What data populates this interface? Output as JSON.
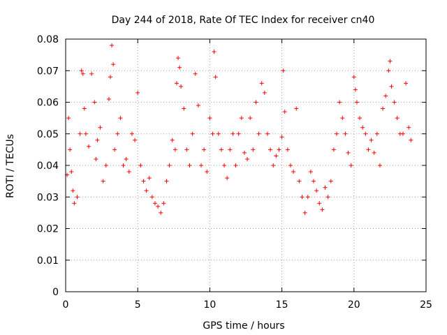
{
  "chart_data": {
    "type": "scatter",
    "title": "Day 244 of 2018, Rate Of TEC Index for receiver cn40",
    "xlabel": "GPS time / hours",
    "ylabel": "ROTI / TECUs",
    "xlim": [
      0,
      25
    ],
    "ylim": [
      0,
      0.08
    ],
    "x_ticks": [
      "0",
      "5",
      "10",
      "15",
      "20",
      "25"
    ],
    "y_ticks": [
      "0",
      "0.01",
      "0.02",
      "0.03",
      "0.04",
      "0.05",
      "0.06",
      "0.07",
      "0.08"
    ],
    "grid": true,
    "marker": "+",
    "marker_color": "#ff0000",
    "series": [
      {
        "x": [
          0.1,
          0.2,
          0.3,
          0.4,
          0.5,
          0.6,
          0.8,
          1.0,
          1.1,
          1.2,
          1.3,
          1.4,
          1.6,
          1.8,
          2.0,
          2.1,
          2.2,
          2.4,
          2.6,
          2.8,
          3.0,
          3.1,
          3.2,
          3.3,
          3.4,
          3.6,
          3.8,
          4.0,
          4.2,
          4.4,
          4.6,
          4.8,
          5.0,
          5.2,
          5.4,
          5.6,
          5.8,
          6.0,
          6.2,
          6.4,
          6.6,
          6.8,
          7.0,
          7.2,
          7.4,
          7.6,
          7.7,
          7.8,
          7.9,
          8.0,
          8.2,
          8.4,
          8.6,
          8.8,
          9.0,
          9.2,
          9.4,
          9.6,
          9.8,
          10.0,
          10.2,
          10.3,
          10.4,
          10.6,
          10.8,
          11.0,
          11.2,
          11.4,
          11.6,
          11.8,
          12.0,
          12.2,
          12.4,
          12.6,
          12.8,
          13.0,
          13.2,
          13.4,
          13.6,
          13.8,
          14.0,
          14.2,
          14.4,
          14.6,
          14.8,
          15.0,
          15.1,
          15.2,
          15.4,
          15.6,
          15.8,
          16.0,
          16.2,
          16.4,
          16.6,
          16.8,
          17.0,
          17.2,
          17.4,
          17.6,
          17.8,
          18.0,
          18.2,
          18.4,
          18.6,
          18.8,
          19.0,
          19.2,
          19.4,
          19.6,
          19.8,
          20.0,
          20.1,
          20.2,
          20.4,
          20.6,
          20.8,
          21.0,
          21.2,
          21.4,
          21.6,
          21.8,
          22.0,
          22.2,
          22.4,
          22.5,
          22.6,
          22.8,
          23.0,
          23.2,
          23.4,
          23.6,
          23.8,
          23.95
        ],
        "y": [
          0.037,
          0.055,
          0.045,
          0.038,
          0.032,
          0.028,
          0.03,
          0.05,
          0.07,
          0.069,
          0.058,
          0.05,
          0.046,
          0.069,
          0.06,
          0.042,
          0.048,
          0.052,
          0.035,
          0.04,
          0.061,
          0.068,
          0.078,
          0.072,
          0.045,
          0.05,
          0.055,
          0.04,
          0.042,
          0.038,
          0.05,
          0.048,
          0.063,
          0.04,
          0.035,
          0.032,
          0.036,
          0.03,
          0.028,
          0.027,
          0.025,
          0.028,
          0.035,
          0.04,
          0.048,
          0.045,
          0.066,
          0.074,
          0.071,
          0.065,
          0.058,
          0.045,
          0.04,
          0.05,
          0.069,
          0.059,
          0.04,
          0.045,
          0.038,
          0.055,
          0.05,
          0.076,
          0.068,
          0.05,
          0.045,
          0.04,
          0.036,
          0.045,
          0.05,
          0.04,
          0.05,
          0.055,
          0.044,
          0.042,
          0.055,
          0.045,
          0.06,
          0.05,
          0.066,
          0.063,
          0.05,
          0.045,
          0.04,
          0.043,
          0.045,
          0.049,
          0.07,
          0.057,
          0.045,
          0.04,
          0.038,
          0.058,
          0.035,
          0.03,
          0.025,
          0.03,
          0.038,
          0.035,
          0.032,
          0.028,
          0.026,
          0.033,
          0.03,
          0.035,
          0.045,
          0.05,
          0.06,
          0.055,
          0.05,
          0.044,
          0.04,
          0.068,
          0.064,
          0.06,
          0.055,
          0.052,
          0.05,
          0.045,
          0.048,
          0.044,
          0.05,
          0.04,
          0.058,
          0.062,
          0.07,
          0.073,
          0.065,
          0.06,
          0.055,
          0.05,
          0.05,
          0.066,
          0.052,
          0.048
        ]
      }
    ]
  }
}
